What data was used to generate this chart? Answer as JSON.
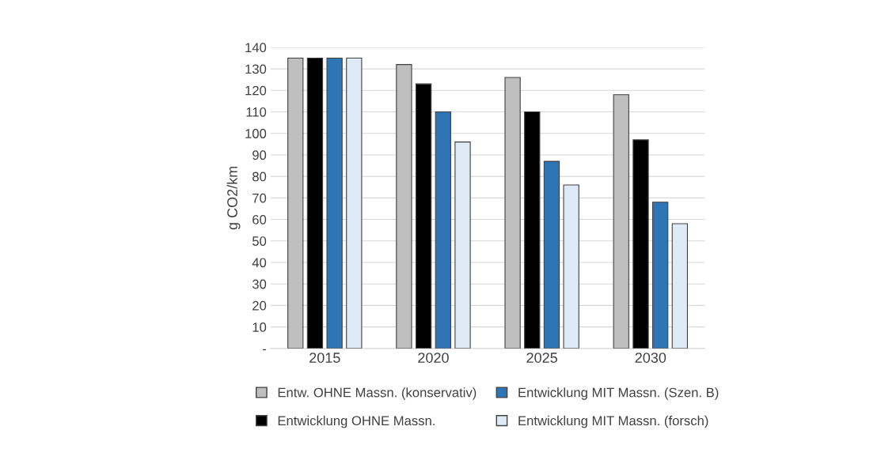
{
  "chart_data": {
    "type": "bar",
    "ylabel": "g CO2/km",
    "categories": [
      "2015",
      "2020",
      "2025",
      "2030"
    ],
    "series": [
      {
        "name": "Entw. OHNE Massn. (konservativ)",
        "color": "#bfbfbf",
        "values": [
          135,
          132,
          126,
          118
        ]
      },
      {
        "name": "Entwicklung OHNE Massn.",
        "color": "#000000",
        "values": [
          135,
          123,
          110,
          97
        ]
      },
      {
        "name": "Entwicklung MIT Massn. (Szen. B)",
        "color": "#2e75b6",
        "values": [
          135,
          110,
          87,
          68
        ]
      },
      {
        "name": "Entwicklung MIT Massn. (forsch)",
        "color": "#deebf7",
        "values": [
          135,
          96,
          76,
          58
        ]
      }
    ],
    "ylim": [
      0,
      140
    ],
    "yticks": [
      {
        "value": 0,
        "label": "-"
      },
      10,
      20,
      30,
      40,
      50,
      60,
      70,
      80,
      90,
      100,
      110,
      120,
      130,
      140
    ],
    "grid": "y",
    "legend": "bottom"
  }
}
